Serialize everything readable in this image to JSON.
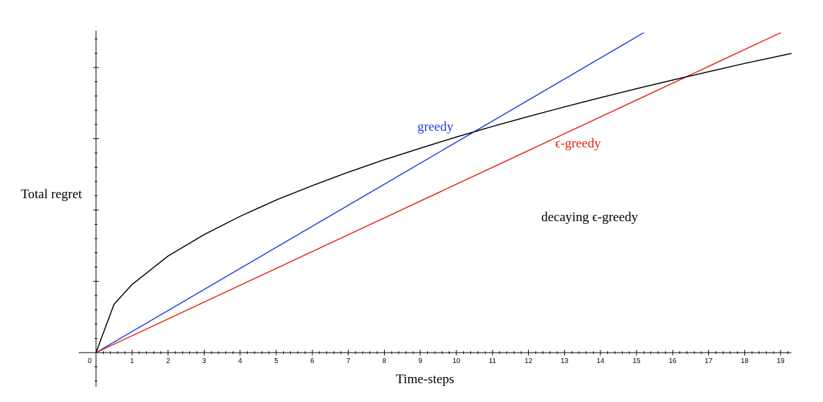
{
  "chart_data": {
    "type": "line",
    "xlabel": "Time-steps",
    "ylabel": "Total regret",
    "xlim": [
      0,
      19.3
    ],
    "ylim": [
      0,
      10
    ],
    "x_ticks": [
      0,
      1,
      2,
      3,
      4,
      5,
      6,
      7,
      8,
      9,
      10,
      11,
      12,
      13,
      14,
      15,
      16,
      17,
      18,
      19
    ],
    "grid": false,
    "y_tick_labels_shown": false,
    "series": [
      {
        "name": "greedy",
        "color": "#1f3fe0",
        "label_color": "#1f3fe0",
        "x": [
          0,
          15.2
        ],
        "y": [
          0,
          10.0
        ]
      },
      {
        "name": "ϵ-greedy",
        "color": "#e8220f",
        "label_color": "#e8220f",
        "x": [
          0,
          19.0
        ],
        "y": [
          0,
          10.0
        ]
      },
      {
        "name": "decaying ϵ-greedy",
        "color": "#000000",
        "label_color": "#000000",
        "x": [
          0,
          0.5,
          1,
          2,
          3,
          4,
          5,
          6,
          7,
          8,
          9,
          10,
          11,
          12,
          13,
          14,
          15,
          16,
          17,
          18,
          19,
          19.3
        ],
        "y": [
          0,
          1.51,
          2.13,
          3.02,
          3.69,
          4.26,
          4.77,
          5.22,
          5.64,
          6.03,
          6.39,
          6.74,
          7.07,
          7.38,
          7.68,
          7.97,
          8.25,
          8.52,
          8.78,
          9.04,
          9.28,
          9.35
        ]
      }
    ]
  }
}
